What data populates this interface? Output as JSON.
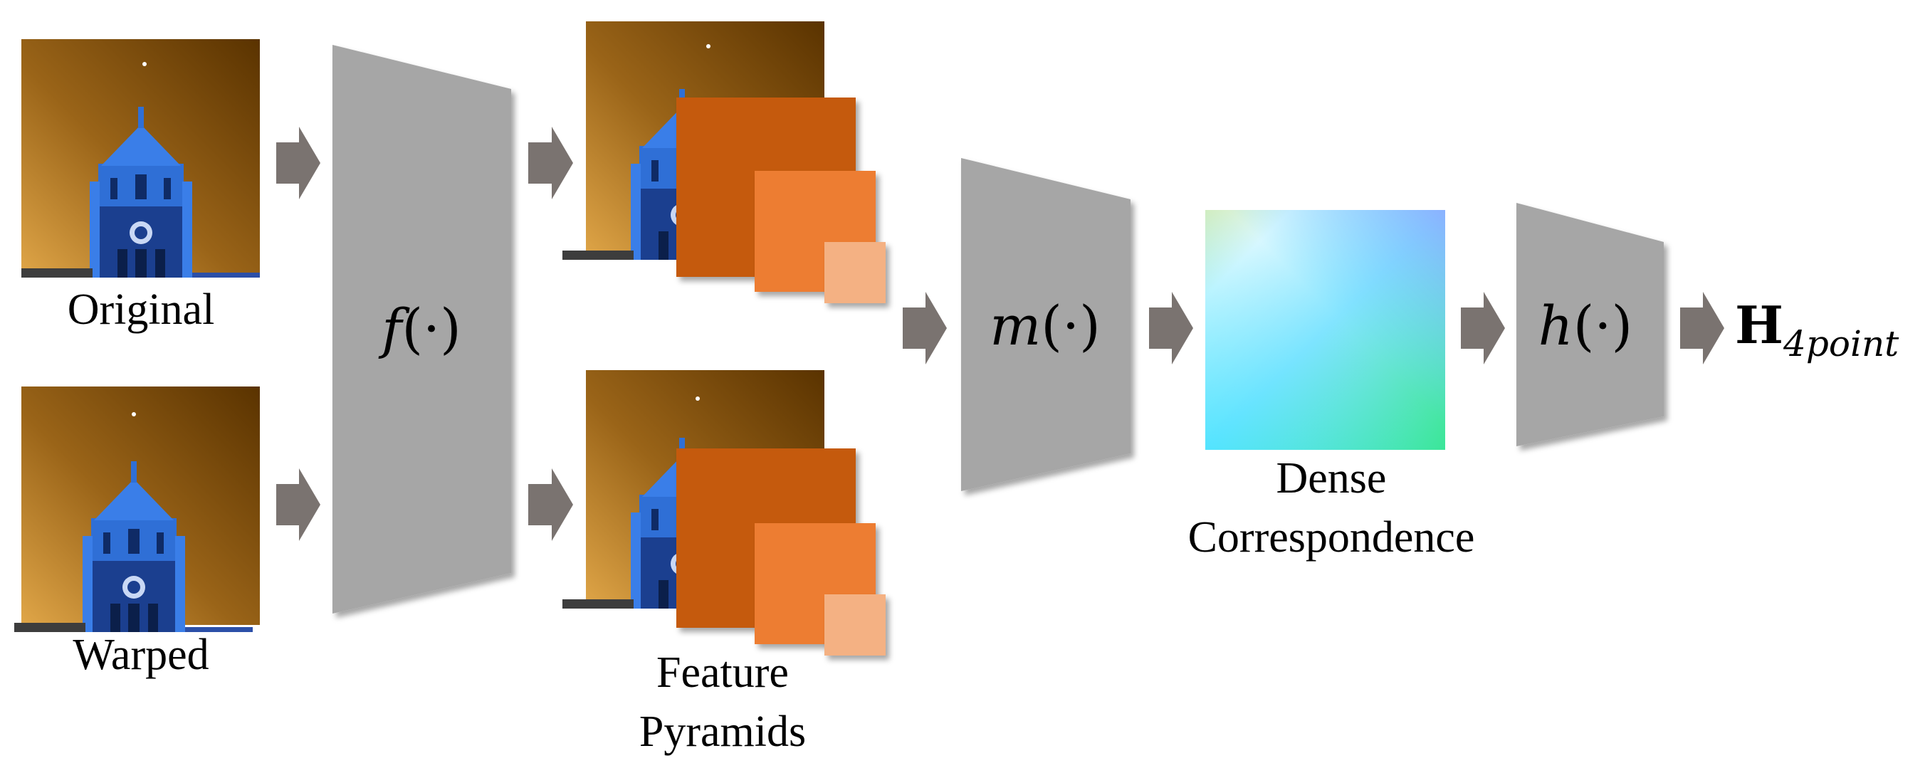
{
  "inputs": {
    "original_label": "Original",
    "warped_label": "Warped"
  },
  "encoder": {
    "fn": "f",
    "arg": "(·)"
  },
  "features": {
    "label_line1": "Feature",
    "label_line2": "Pyramids"
  },
  "matcher": {
    "fn": "m",
    "arg": "(·)"
  },
  "correspondence": {
    "label_line1": "Dense",
    "label_line2": "Correspondence"
  },
  "head": {
    "fn": "h",
    "arg": "(·)"
  },
  "output": {
    "symbol": "H",
    "subscript": "4point"
  },
  "colors": {
    "block_gray": "#a6a6a6",
    "arrow_gray": "#7a7370",
    "pyramid_level1": "#c55a11",
    "pyramid_level2": "#ed7d31",
    "pyramid_level3": "#f4b183",
    "sky_dark": "#5a3300",
    "sky_light": "#d99b3a",
    "tower_blue": "#2f6fd6"
  }
}
